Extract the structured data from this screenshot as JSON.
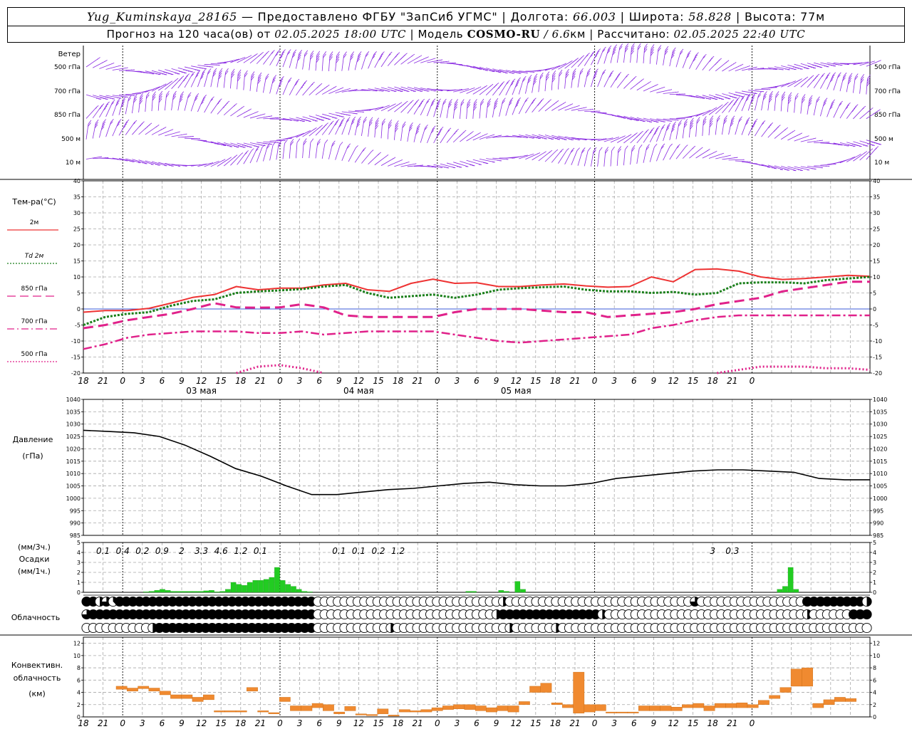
{
  "header": {
    "station": "Yug_Kuminskaya_28165",
    "provider_prefix": " — Предоставлено ФГБУ \"ЗапСиб УГМС\" | Долгота: ",
    "lon": "66.003",
    "lat_label": " | Широта: ",
    "lat": "58.828",
    "alt_label": " | Высота: 77м",
    "fc_prefix": "Прогноз на 120 часа(ов) от ",
    "fc_date": "02.05.2025 18:00 UTC",
    "model_label": "  | Модель ",
    "model_name": "COSMO-RU",
    "model_res": " / 6.6",
    "model_res_unit": "км | Рассчитано: ",
    "calc_date": "02.05.2025 22:40 UTC"
  },
  "chart_data": {
    "type": "meteogram",
    "time_step_hours": 3,
    "start": "02.05 18 UTC",
    "hour_ticks": [
      "18",
      "21",
      "0",
      "3",
      "6",
      "9",
      "12",
      "15",
      "18",
      "21",
      "0",
      "3",
      "6",
      "9",
      "12",
      "15",
      "18",
      "21",
      "0",
      "3",
      "6",
      "9",
      "12",
      "15",
      "18",
      "21",
      "0",
      "3",
      "6",
      "9",
      "12",
      "15",
      "18",
      "21",
      "0"
    ],
    "day_labels": [
      {
        "label": "03 мая",
        "at_hour": 12
      },
      {
        "label": "04 мая",
        "at_hour": 36
      },
      {
        "label": "05 мая",
        "at_hour": 60
      }
    ],
    "wind": {
      "title": "Ветер",
      "levels": [
        "500 гПа",
        "700 гПа",
        "850 гПа",
        "500 м",
        "10 м"
      ],
      "color": "#8a2be2"
    },
    "temperature": {
      "title": "Тем-ра(°C)",
      "ylim": [
        -20,
        40
      ],
      "yticks": [
        40,
        35,
        30,
        25,
        20,
        15,
        10,
        5,
        0,
        -5,
        -10,
        -15,
        -20
      ],
      "legend": [
        {
          "label": "2м",
          "color": "#ee3333",
          "style": "solid"
        },
        {
          "label": "Td  2м",
          "color": "#1a7f1a",
          "style": "dotted"
        },
        {
          "label": "850 гПа",
          "color": "#e0218a",
          "style": "dash"
        },
        {
          "label": "700 гПа",
          "color": "#e0218a",
          "style": "dashdot"
        },
        {
          "label": "500 гПа",
          "color": "#e0218a",
          "style": "dotted"
        }
      ],
      "series": [
        {
          "name": "2м",
          "color": "#ee3333",
          "values": [
            -1,
            -0.5,
            -0.5,
            0.2,
            1.8,
            3.6,
            4.5,
            7,
            6,
            6.5,
            6.5,
            7.5,
            8,
            6,
            5.5,
            8,
            9.3,
            8,
            8.2,
            7,
            7,
            7.5,
            7.8,
            7.2,
            6.8,
            7,
            10,
            8.5,
            12.3,
            12.5,
            11.8,
            10,
            9.2,
            9.5,
            10,
            10.5,
            10.2
          ]
        },
        {
          "name": "Td 2м",
          "color": "#1a7f1a",
          "values": [
            -5,
            -2.5,
            -1.5,
            -1,
            1,
            2.5,
            3,
            5,
            5.5,
            5.8,
            6.2,
            7,
            7.5,
            5,
            3.5,
            4,
            4.5,
            3.5,
            4.5,
            6,
            6.5,
            6.8,
            7,
            6,
            5.5,
            5.5,
            5,
            5.3,
            4.5,
            5,
            8,
            8.3,
            8.3,
            8,
            9,
            9.5,
            10
          ]
        },
        {
          "name": "850 гПа",
          "color": "#e0218a",
          "values": [
            -6,
            -5,
            -3.5,
            -2.5,
            -1.5,
            0,
            1.8,
            0.5,
            0.4,
            0.5,
            1.5,
            0.5,
            -2,
            -2.5,
            -2.5,
            -2.5,
            -2.5,
            -1,
            0,
            0,
            0,
            -0.5,
            -1,
            -1,
            -2.5,
            -2,
            -1.5,
            -1,
            0,
            1.5,
            2.5,
            3.5,
            5.5,
            6.5,
            7.5,
            8.5,
            8.5
          ]
        },
        {
          "name": "700 гПа",
          "color": "#e0218a",
          "values": [
            -12.5,
            -11,
            -9,
            -8,
            -7.5,
            -7,
            -7,
            -7,
            -7.5,
            -7.5,
            -7,
            -8,
            -7.5,
            -7,
            -7,
            -7,
            -7,
            -8,
            -9,
            -10,
            -10.5,
            -10,
            -9.5,
            -9,
            -8.5,
            -8,
            -6,
            -5,
            -3.5,
            -2.5,
            -2,
            -2,
            -2,
            -2,
            -2,
            -2,
            -2
          ]
        },
        {
          "name": "500 гПа",
          "color": "#e0218a",
          "values": [
            null,
            null,
            null,
            null,
            null,
            null,
            null,
            -20,
            -18,
            -17.5,
            -18.5,
            -20,
            null,
            null,
            null,
            null,
            null,
            null,
            null,
            null,
            null,
            null,
            null,
            null,
            null,
            null,
            null,
            null,
            null,
            -20,
            -19,
            -18,
            -18,
            -18,
            -18.5,
            -18.5,
            -19
          ]
        }
      ]
    },
    "pressure": {
      "title": "Давление",
      "unit": "(гПа)",
      "ylim": [
        985,
        1040
      ],
      "yticks": [
        1040,
        1035,
        1030,
        1025,
        1020,
        1015,
        1010,
        1005,
        1000,
        995,
        990,
        985
      ],
      "values": [
        1027.5,
        1027,
        1026.5,
        1025,
        1021.5,
        1017,
        1012,
        1009,
        1005,
        1001.5,
        1001.5,
        1002.5,
        1003.5,
        1004,
        1005,
        1006,
        1006.5,
        1005.5,
        1005,
        1005,
        1006,
        1008,
        1009,
        1010,
        1011,
        1011.5,
        1011.5,
        1011,
        1010.5,
        1008,
        1007.5,
        1007.5
      ]
    },
    "precipitation": {
      "title": "Осадки",
      "unit_3h": "(мм/3ч.)",
      "unit_1h": "(мм/1ч.)",
      "ylim": [
        0,
        5
      ],
      "yticks": [
        5,
        4,
        3,
        2,
        1,
        0
      ],
      "color": "#22cc22",
      "totals_3h": [
        {
          "label": "0.1",
          "hour": 4.5
        },
        {
          "label": "0.4",
          "hour": 7.5
        },
        {
          "label": "0.2",
          "hour": 10.5
        },
        {
          "label": "0.9",
          "hour": 13.5
        },
        {
          "label": "2",
          "hour": 16.5
        },
        {
          "label": "3.3",
          "hour": 19.5
        },
        {
          "label": "4.6",
          "hour": 22.5
        },
        {
          "label": "1.2",
          "hour": 25.5
        },
        {
          "label": "0.1",
          "hour": 28.5
        },
        {
          "label": "0.1",
          "hour": 40.5
        },
        {
          "label": "0.1",
          "hour": 43.5
        },
        {
          "label": "0.2",
          "hour": 46.5
        },
        {
          "label": "1.2",
          "hour": 49.5
        },
        {
          "label": "3",
          "hour": 97.5
        },
        {
          "label": "0.3",
          "hour": 100.5
        }
      ],
      "hourly": [
        0,
        0,
        0,
        0,
        0,
        0,
        0,
        0,
        0,
        0,
        0,
        0.05,
        0.1,
        0.2,
        0.3,
        0.2,
        0.1,
        0.1,
        0.1,
        0.1,
        0.1,
        0.1,
        0.15,
        0.2,
        0.05,
        0.1,
        0.3,
        1,
        0.8,
        0.7,
        1,
        1.2,
        1.2,
        1.3,
        1.5,
        2.5,
        1.2,
        0.8,
        0.6,
        0.3,
        0.1,
        0.05,
        0,
        0,
        0,
        0,
        0,
        0,
        0,
        0,
        0,
        0,
        0,
        0,
        0,
        0,
        0,
        0,
        0,
        0,
        0,
        0,
        0,
        0,
        0,
        0,
        0,
        0,
        0,
        0,
        0.1,
        0.1,
        0,
        0,
        0,
        0,
        0.2,
        0.1,
        0,
        1.1,
        0.3,
        0,
        0,
        0,
        0,
        0,
        0,
        0,
        0,
        0,
        0,
        0,
        0,
        0,
        0,
        0,
        0,
        0,
        0,
        0,
        0,
        0,
        0,
        0,
        0,
        0,
        0,
        0,
        0,
        0,
        0,
        0,
        0,
        0,
        0,
        0,
        0,
        0,
        0,
        0,
        0,
        0,
        0,
        0,
        0,
        0,
        0,
        0.3,
        0.6,
        2.5,
        0.3,
        0,
        0,
        0,
        0,
        0,
        0,
        0,
        0,
        0,
        0,
        0,
        0
      ]
    },
    "cloudiness": {
      "title": "Облачность",
      "rows": [
        "884412222111111111111111110000000000000000000000000000000000000000000000000000000000000000000000000000000000000000000000000000",
        "843333333333333333333333333000000000000000000000000003333333333333330000000000000000000000000000000000000000000000000000000000",
        "000000003333333333333333333000000000000000000000000000000000000000000000000000000000000000000000000000000000000000000000000000"
      ],
      "cover_octas": [
        [
          8,
          8,
          4,
          6,
          3,
          8,
          8,
          8,
          8,
          8,
          8,
          8,
          8,
          8,
          8,
          8,
          8,
          8,
          8,
          8,
          8,
          8,
          8,
          8,
          8,
          8,
          8,
          8,
          8,
          8,
          8,
          8,
          8,
          8,
          8,
          0,
          0,
          0,
          0,
          0,
          0,
          0,
          0,
          0,
          0,
          0,
          0,
          0,
          0,
          0,
          0,
          0,
          0,
          0,
          0,
          0,
          0,
          0,
          0,
          0,
          0,
          0,
          0,
          4,
          0,
          0,
          0,
          0,
          0,
          0,
          0,
          0,
          0,
          0,
          0,
          0,
          0,
          0,
          0,
          0,
          0,
          0,
          0,
          0,
          0,
          0,
          0,
          0,
          0,
          0,
          0,
          0,
          6,
          0,
          0,
          0,
          0,
          0,
          0,
          0,
          0,
          0,
          0,
          0,
          0,
          0,
          0,
          0,
          0,
          8,
          8,
          8,
          8,
          8,
          8,
          8,
          8,
          8,
          4,
          4,
          8,
          8,
          8,
          8,
          8,
          0,
          0,
          4,
          0
        ],
        [
          6,
          8,
          8,
          8,
          8,
          8,
          8,
          8,
          8,
          8,
          8,
          8,
          8,
          8,
          8,
          8,
          8,
          8,
          8,
          8,
          8,
          8,
          8,
          8,
          8,
          8,
          8,
          8,
          8,
          8,
          8,
          8,
          8,
          8,
          8,
          0,
          0,
          0,
          0,
          0,
          0,
          0,
          0,
          0,
          0,
          0,
          0,
          0,
          0,
          0,
          0,
          0,
          0,
          0,
          0,
          0,
          0,
          0,
          0,
          0,
          0,
          0,
          4,
          8,
          8,
          8,
          8,
          8,
          8,
          8,
          8,
          8,
          8,
          8,
          8,
          8,
          8,
          8,
          4,
          0,
          0,
          0,
          0,
          0,
          0,
          0,
          0,
          0,
          0,
          0,
          0,
          0,
          0,
          0,
          0,
          0,
          0,
          0,
          0,
          0,
          0,
          0,
          0,
          0,
          0,
          0,
          0,
          0,
          0,
          4,
          0,
          0,
          0,
          0,
          0,
          0,
          8,
          8,
          8,
          8,
          8,
          8,
          8,
          8,
          8,
          8,
          8,
          6,
          8
        ],
        [
          0,
          0,
          0,
          0,
          0,
          0,
          0,
          0,
          0,
          0,
          4,
          8,
          8,
          8,
          8,
          8,
          8,
          8,
          8,
          8,
          8,
          8,
          8,
          8,
          8,
          8,
          8,
          8,
          8,
          8,
          8,
          8,
          8,
          8,
          8,
          0,
          0,
          0,
          0,
          0,
          0,
          0,
          0,
          0,
          0,
          0,
          4,
          0,
          0,
          0,
          0,
          0,
          0,
          0,
          0,
          0,
          0,
          0,
          0,
          0,
          0,
          0,
          0,
          0,
          4,
          0,
          0,
          0,
          0,
          0,
          0,
          4,
          0,
          0,
          0,
          0,
          0,
          0,
          0,
          0,
          0,
          0,
          0,
          0,
          0,
          0,
          0,
          0,
          0,
          0,
          0,
          0,
          0,
          0,
          0,
          0,
          0,
          0,
          0,
          0,
          0,
          0,
          0,
          0,
          0,
          0,
          0,
          0,
          0,
          0,
          0,
          0,
          0,
          0,
          0,
          0,
          0,
          0,
          0,
          0,
          0,
          0,
          0,
          0,
          0,
          0,
          0,
          0
        ]
      ]
    },
    "convective": {
      "title": "Конвективн.",
      "title2": "облачность",
      "unit": "(км)",
      "ylim": [
        0,
        13
      ],
      "yticks": [
        12,
        10,
        8,
        6,
        4,
        2,
        0
      ],
      "color": "#f08a30",
      "bars": [
        [
          4.5,
          5
        ],
        [
          4.2,
          4.7
        ],
        [
          4.6,
          5
        ],
        [
          4.2,
          4.7
        ],
        [
          3.6,
          4.2
        ],
        [
          3,
          3.6
        ],
        [
          3,
          3.6
        ],
        [
          2.5,
          3.2
        ],
        [
          2.8,
          3.6
        ],
        [
          0.8,
          1
        ],
        [
          0.8,
          1
        ],
        [
          0.8,
          1
        ],
        [
          4.2,
          4.8
        ],
        [
          0.8,
          1
        ],
        [
          0.5,
          0.7
        ],
        [
          2.5,
          3.2
        ],
        [
          1,
          1.8
        ],
        [
          1,
          1.8
        ],
        [
          1.5,
          2.2
        ],
        [
          1,
          2
        ],
        [
          0.5,
          0.8
        ],
        [
          1,
          1.7
        ],
        [
          0.3,
          0.5
        ],
        [
          0.2,
          0.4
        ],
        [
          0.5,
          1.3
        ],
        [
          0.2,
          0.3
        ],
        [
          0.8,
          1.2
        ],
        [
          0.8,
          1
        ],
        [
          0.8,
          1.2
        ],
        [
          1,
          1.5
        ],
        [
          1.2,
          1.8
        ],
        [
          1.3,
          2
        ],
        [
          1.2,
          2
        ],
        [
          1,
          1.8
        ],
        [
          0.8,
          1.5
        ],
        [
          1,
          1.8
        ],
        [
          0.8,
          1.8
        ],
        [
          2,
          2.5
        ],
        [
          4,
          5
        ],
        [
          4,
          5.5
        ],
        [
          2,
          2.3
        ],
        [
          1.5,
          2
        ],
        [
          0.6,
          7.3
        ],
        [
          0.8,
          2
        ],
        [
          1,
          2
        ],
        [
          0.8,
          0.8
        ],
        [
          0.8,
          0.8
        ],
        [
          0.8,
          0.8
        ],
        [
          1,
          1.8
        ],
        [
          1,
          1.8
        ],
        [
          1,
          1.8
        ],
        [
          1,
          1.6
        ],
        [
          1.5,
          2
        ],
        [
          1.5,
          2.2
        ],
        [
          1,
          1.8
        ],
        [
          1.5,
          2.2
        ],
        [
          1.5,
          2.2
        ],
        [
          1.5,
          2.3
        ],
        [
          1.5,
          2
        ],
        [
          2,
          2.7
        ],
        [
          3,
          3.5
        ],
        [
          4,
          4.8
        ],
        [
          5,
          7.8
        ],
        [
          5,
          8
        ],
        [
          1.5,
          2.2
        ],
        [
          2,
          2.8
        ],
        [
          2.5,
          3.2
        ],
        [
          2.5,
          3
        ]
      ]
    }
  }
}
